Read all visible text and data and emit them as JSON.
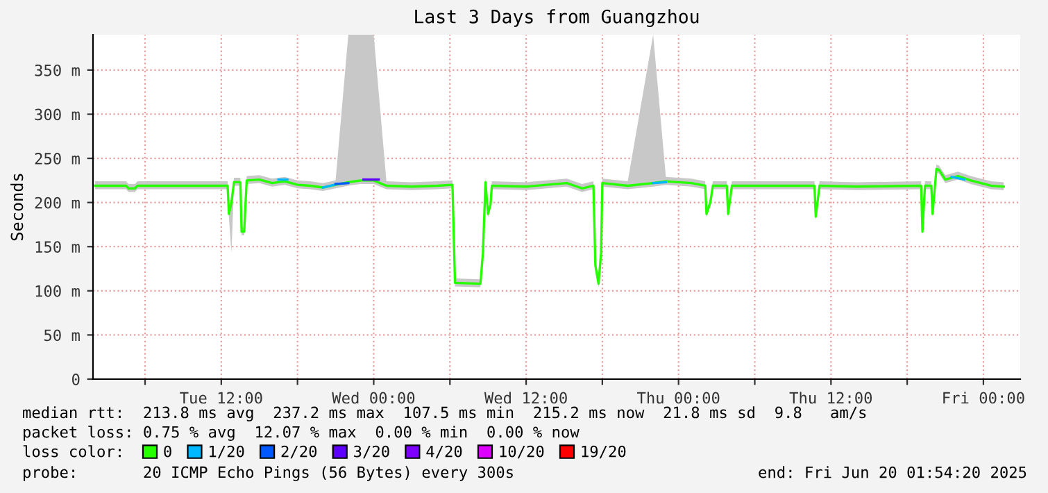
{
  "chart_data": {
    "type": "line",
    "title": "Last 3 Days from Guangzhou",
    "ylabel": "Seconds",
    "legend_title": "loss color:",
    "legend": "bottom",
    "grid": true,
    "marker": "none",
    "line_style": "solid",
    "xlim": [
      "2025-06-17T01:54",
      "2025-06-20T02:54"
    ],
    "ylim": [
      0,
      390
    ],
    "xticks": [
      {
        "value": "2025-06-17T06:00",
        "label": null
      },
      {
        "value": "2025-06-17T12:00",
        "label": "Tue 12:00"
      },
      {
        "value": "2025-06-17T18:00",
        "label": null
      },
      {
        "value": "2025-06-18T00:00",
        "label": "Wed 00:00"
      },
      {
        "value": "2025-06-18T06:00",
        "label": null
      },
      {
        "value": "2025-06-18T12:00",
        "label": "Wed 12:00"
      },
      {
        "value": "2025-06-18T18:00",
        "label": null
      },
      {
        "value": "2025-06-19T00:00",
        "label": "Thu 00:00"
      },
      {
        "value": "2025-06-19T06:00",
        "label": null
      },
      {
        "value": "2025-06-19T12:00",
        "label": "Thu 12:00"
      },
      {
        "value": "2025-06-19T18:00",
        "label": null
      },
      {
        "value": "2025-06-20T00:00",
        "label": "Fri 00:00"
      }
    ],
    "yticks": [
      0,
      {
        "value": 50,
        "label": "50 m"
      },
      {
        "value": 100,
        "label": "100 m"
      },
      {
        "value": 150,
        "label": "150 m"
      },
      {
        "value": 200,
        "label": "200 m"
      },
      {
        "value": 250,
        "label": "250 m"
      },
      {
        "value": 300,
        "label": "300 m"
      },
      {
        "value": 350,
        "label": "350 m"
      }
    ],
    "annotations": [
      "median rtt:  213.8 ms avg  237.2 ms max  107.5 ms min  215.2 ms now  21.8 ms sd  9.8   am/s",
      "packet loss: 0.75 % avg  12.07 % max  0.00 % min  0.00 % now",
      "probe:       20 ICMP Echo Pings (56 Bytes) every 300s",
      "end: Fri Jun 20 01:54:20 2025"
    ],
    "series": [
      {
        "name": "0",
        "color": "#26ff00",
        "x": [
          "2025-06-17T02:04",
          "2025-06-17T04:30",
          "2025-06-17T04:42",
          "2025-06-17T05:12",
          "2025-06-17T05:24",
          "2025-06-17T12:30",
          "2025-06-17T12:36",
          "2025-06-17T12:48",
          "2025-06-17T13:00",
          "2025-06-17T13:30",
          "2025-06-17T13:36",
          "2025-06-17T13:48",
          "2025-06-17T14:00",
          "2025-06-17T15:00",
          "2025-06-17T16:00",
          "2025-06-17T17:00",
          "2025-06-17T18:00",
          "2025-06-17T19:00",
          "2025-06-17T20:00",
          "2025-06-17T21:00",
          "2025-06-17T22:00",
          "2025-06-17T23:00",
          "2025-06-18T00:00",
          "2025-06-18T01:00",
          "2025-06-18T03:00",
          "2025-06-18T05:00",
          "2025-06-18T06:12",
          "2025-06-18T06:24",
          "2025-06-18T08:24",
          "2025-06-18T08:36",
          "2025-06-18T08:48",
          "2025-06-18T09:00",
          "2025-06-18T09:12",
          "2025-06-18T09:18",
          "2025-06-18T12:00",
          "2025-06-18T15:12",
          "2025-06-18T16:24",
          "2025-06-18T17:18",
          "2025-06-18T17:27",
          "2025-06-18T17:42",
          "2025-06-18T17:54",
          "2025-06-18T18:00",
          "2025-06-18T20:00",
          "2025-06-18T22:00",
          "2025-06-18T23:00",
          "2025-06-19T00:00",
          "2025-06-19T01:00",
          "2025-06-19T02:06",
          "2025-06-19T02:12",
          "2025-06-19T02:30",
          "2025-06-19T02:42",
          "2025-06-19T03:48",
          "2025-06-19T03:54",
          "2025-06-19T04:12",
          "2025-06-19T08:00",
          "2025-06-19T10:42",
          "2025-06-19T10:48",
          "2025-06-19T11:06",
          "2025-06-19T14:00",
          "2025-06-19T19:06",
          "2025-06-19T19:12",
          "2025-06-19T19:24",
          "2025-06-19T19:54",
          "2025-06-19T20:00",
          "2025-06-19T20:18",
          "2025-06-19T20:30",
          "2025-06-19T21:00",
          "2025-06-19T22:00",
          "2025-06-19T23:00",
          "2025-06-20T00:36",
          "2025-06-20T01:36"
        ],
        "values": [
          219,
          219,
          216,
          216,
          219,
          219,
          187,
          200,
          223,
          223,
          167,
          167,
          225,
          226,
          222,
          224,
          220,
          219,
          217,
          220,
          223,
          225,
          225,
          219,
          218,
          219,
          220,
          109,
          108,
          143,
          223,
          187,
          198,
          219,
          218,
          222,
          216,
          219,
          129,
          108,
          143,
          222,
          219,
          222,
          224,
          223,
          222,
          219,
          187,
          200,
          219,
          219,
          187,
          219,
          219,
          219,
          184,
          219,
          218,
          219,
          167,
          219,
          219,
          187,
          238,
          237,
          226,
          230,
          225,
          219,
          218
        ],
        "lower": [
          215,
          215,
          212,
          212,
          215,
          215,
          183,
          143,
          219,
          219,
          163,
          163,
          221,
          222,
          218,
          220,
          216,
          215,
          213,
          216,
          219,
          221,
          221,
          215,
          214,
          215,
          216,
          105,
          104,
          139,
          219,
          183,
          194,
          215,
          214,
          218,
          212,
          215,
          125,
          104,
          139,
          218,
          215,
          218,
          220,
          219,
          218,
          215,
          183,
          196,
          215,
          215,
          183,
          215,
          215,
          215,
          180,
          215,
          214,
          215,
          163,
          215,
          215,
          183,
          234,
          233,
          222,
          226,
          221,
          215,
          214
        ],
        "upper": [
          224,
          224,
          221,
          221,
          224,
          224,
          192,
          205,
          228,
          228,
          172,
          172,
          230,
          231,
          227,
          229,
          225,
          224,
          222,
          225,
          390,
          390,
          390,
          224,
          223,
          224,
          225,
          114,
          113,
          148,
          228,
          192,
          203,
          224,
          223,
          227,
          221,
          224,
          134,
          113,
          148,
          227,
          224,
          390,
          229,
          228,
          227,
          224,
          192,
          205,
          224,
          224,
          192,
          224,
          224,
          224,
          189,
          224,
          223,
          224,
          172,
          224,
          224,
          192,
          243,
          242,
          231,
          235,
          230,
          224,
          223
        ]
      },
      {
        "name": "1/20",
        "color": "#00b8ff",
        "x": [
          "2025-06-17T16:30",
          "2025-06-17T17:12",
          "2025-06-17T17:18",
          "2025-06-17T20:00",
          "2025-06-17T20:54",
          "2025-06-17T20:57",
          "2025-06-18T22:00",
          "2025-06-18T23:00",
          "2025-06-18T23:12",
          "2025-06-19T21:30",
          "2025-06-19T22:30"
        ],
        "values": [
          226,
          226,
          null,
          217,
          220,
          null,
          222,
          223,
          null,
          229,
          226
        ]
      },
      {
        "name": "2/20",
        "color": "#0059ff",
        "x": [
          "2025-06-17T21:00",
          "2025-06-17T22:00"
        ],
        "values": [
          221,
          222
        ]
      },
      {
        "name": "3/20",
        "color": "#5e00ff",
        "x": [
          "2025-06-17T23:12",
          "2025-06-18T00:24"
        ],
        "values": [
          226,
          226
        ]
      },
      {
        "name": "4/20",
        "color": "#7e00ff"
      },
      {
        "name": "10/20",
        "color": "#dd00ff"
      },
      {
        "name": "19/20",
        "color": "#ff0000"
      }
    ]
  }
}
